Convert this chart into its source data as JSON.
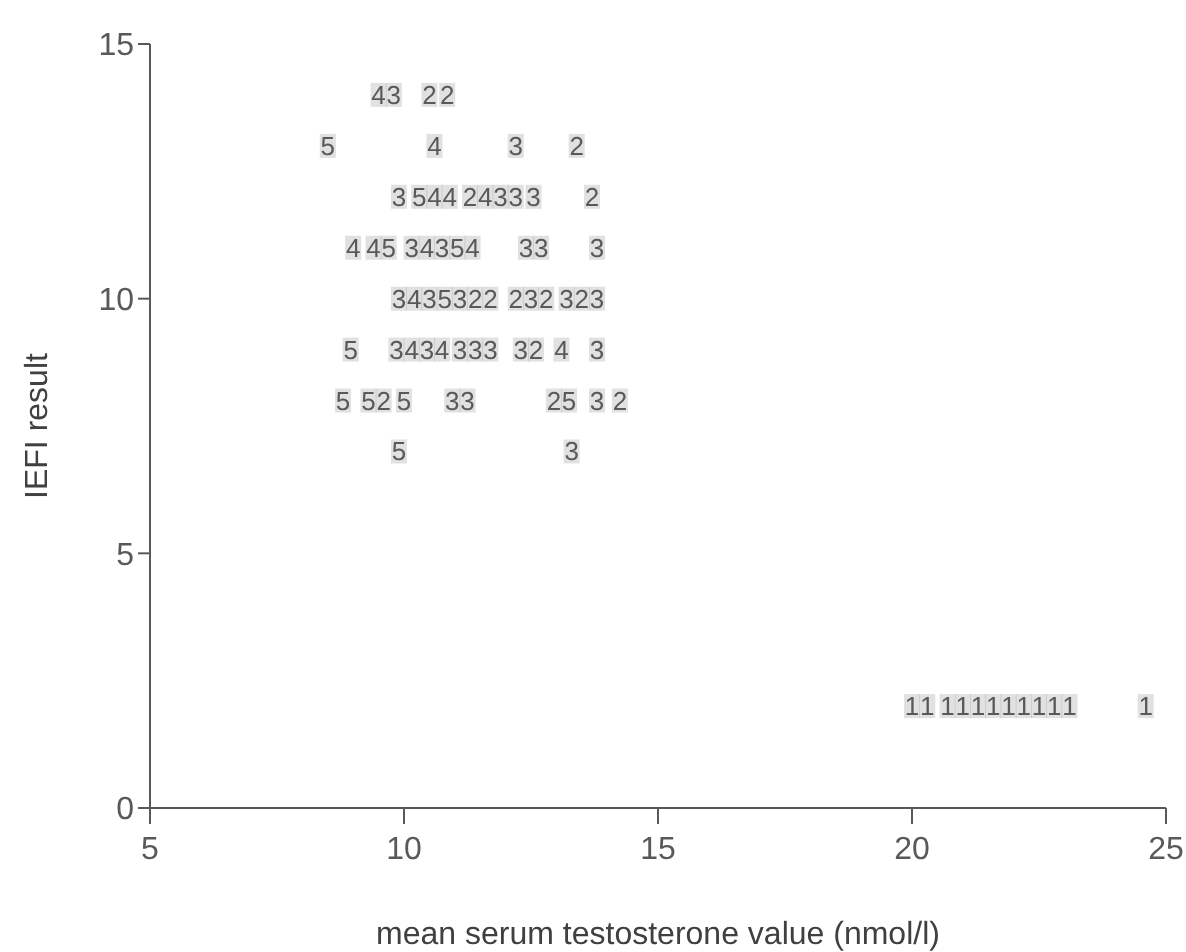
{
  "chart_data": {
    "type": "scatter",
    "xlabel": "mean serum testosterone value (nmol/l)",
    "ylabel": "IEFI result",
    "xlim": [
      5,
      25
    ],
    "xticks": [
      5,
      10,
      15,
      20,
      25
    ],
    "ylim": [
      0,
      15
    ],
    "yticks": [
      0,
      5,
      10,
      15
    ],
    "grid": false,
    "legend": false,
    "marker": "square",
    "series": [
      {
        "name": "1",
        "color": "#595959",
        "x": [
          20.0,
          20.3,
          20.7,
          21.0,
          21.3,
          21.6,
          21.9,
          22.2,
          22.5,
          22.8,
          23.1,
          24.6
        ],
        "values": [
          2,
          2,
          2,
          2,
          2,
          2,
          2,
          2,
          2,
          2,
          2,
          2
        ]
      },
      {
        "name": "2",
        "color": "#595959",
        "x": [
          10.5,
          10.85,
          13.4,
          11.3,
          13.7,
          11.4,
          11.7,
          12.2,
          12.8,
          13.5,
          12.6,
          9.6,
          12.95,
          14.25
        ],
        "values": [
          14,
          14,
          13,
          12,
          12,
          10,
          10,
          10,
          10,
          10,
          9,
          8,
          8,
          8
        ]
      },
      {
        "name": "3",
        "color": "#595959",
        "x": [
          9.8,
          12.2,
          9.9,
          11.9,
          12.2,
          12.55,
          10.15,
          10.75,
          12.4,
          12.7,
          13.8,
          9.9,
          10.5,
          11.1,
          12.5,
          13.2,
          13.8,
          9.85,
          10.45,
          11.1,
          11.4,
          11.7,
          12.3,
          13.8,
          10.95,
          11.25,
          13.8,
          13.3
        ],
        "values": [
          14,
          13,
          12,
          12,
          12,
          12,
          11,
          11,
          11,
          11,
          11,
          10,
          10,
          10,
          10,
          10,
          10,
          9,
          9,
          9,
          9,
          9,
          9,
          9,
          8,
          8,
          8,
          7
        ]
      },
      {
        "name": "4",
        "color": "#595959",
        "x": [
          9.5,
          10.6,
          10.6,
          10.9,
          11.6,
          9.0,
          9.4,
          10.45,
          11.35,
          10.2,
          10.15,
          10.75,
          13.1
        ],
        "values": [
          14,
          13,
          12,
          12,
          12,
          11,
          11,
          11,
          11,
          10,
          9,
          9,
          9
        ]
      },
      {
        "name": "5",
        "color": "#595959",
        "x": [
          8.5,
          10.3,
          9.7,
          11.05,
          10.8,
          8.95,
          8.8,
          9.3,
          10.0,
          13.25,
          9.9
        ],
        "values": [
          13,
          12,
          11,
          11,
          10,
          9,
          8,
          8,
          8,
          8,
          7
        ]
      }
    ]
  }
}
